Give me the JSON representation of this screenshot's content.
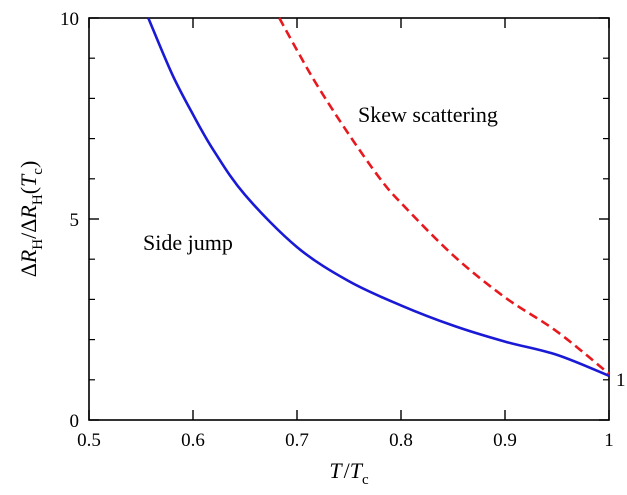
{
  "chart_data": {
    "type": "line",
    "title": "",
    "xlabel": {
      "main": "T",
      "slash": "/",
      "sub_base": "T",
      "sub": "c"
    },
    "ylabel": {
      "delta1": "Δ",
      "r1": "R",
      "h1": "H",
      "slash": "/",
      "delta2": "Δ",
      "r2": "R",
      "h2": "H",
      "paren_open": "(",
      "t": "T",
      "c": "c",
      "paren_close": ")"
    },
    "xlim": [
      0.5,
      1.0
    ],
    "ylim": [
      0,
      10
    ],
    "x_ticks": [
      0.5,
      0.6,
      0.7,
      0.8,
      0.9,
      1.0
    ],
    "x_tick_labels": [
      "0.5",
      "0.6",
      "0.7",
      "0.8",
      "0.9",
      "1"
    ],
    "y_ticks": [
      0,
      5,
      10
    ],
    "y_tick_labels": [
      "0",
      "5",
      "10"
    ],
    "y_minor_ticks": [
      1,
      2,
      3,
      4,
      6,
      7,
      8,
      9
    ],
    "grid": false,
    "series": [
      {
        "label": "Side jump",
        "color": "#1a1ad6",
        "dash": "solid",
        "x": [
          0.557,
          0.58,
          0.6,
          0.62,
          0.65,
          0.7,
          0.75,
          0.8,
          0.85,
          0.9,
          0.95,
          1.0
        ],
        "y": [
          10.0,
          8.6,
          7.6,
          6.7,
          5.6,
          4.3,
          3.45,
          2.85,
          2.35,
          1.95,
          1.62,
          1.1
        ]
      },
      {
        "label": "Skew scattering",
        "color": "#e8191e",
        "dash": "dashed",
        "x": [
          0.683,
          0.7,
          0.72,
          0.75,
          0.78,
          0.8,
          0.85,
          0.9,
          0.95,
          1.0
        ],
        "y": [
          10.0,
          9.2,
          8.3,
          7.1,
          6.0,
          5.4,
          4.1,
          3.05,
          2.2,
          1.15
        ]
      }
    ],
    "annotations": {
      "skew": "Skew scattering",
      "side": "Side jump",
      "right_marker": "1"
    }
  }
}
